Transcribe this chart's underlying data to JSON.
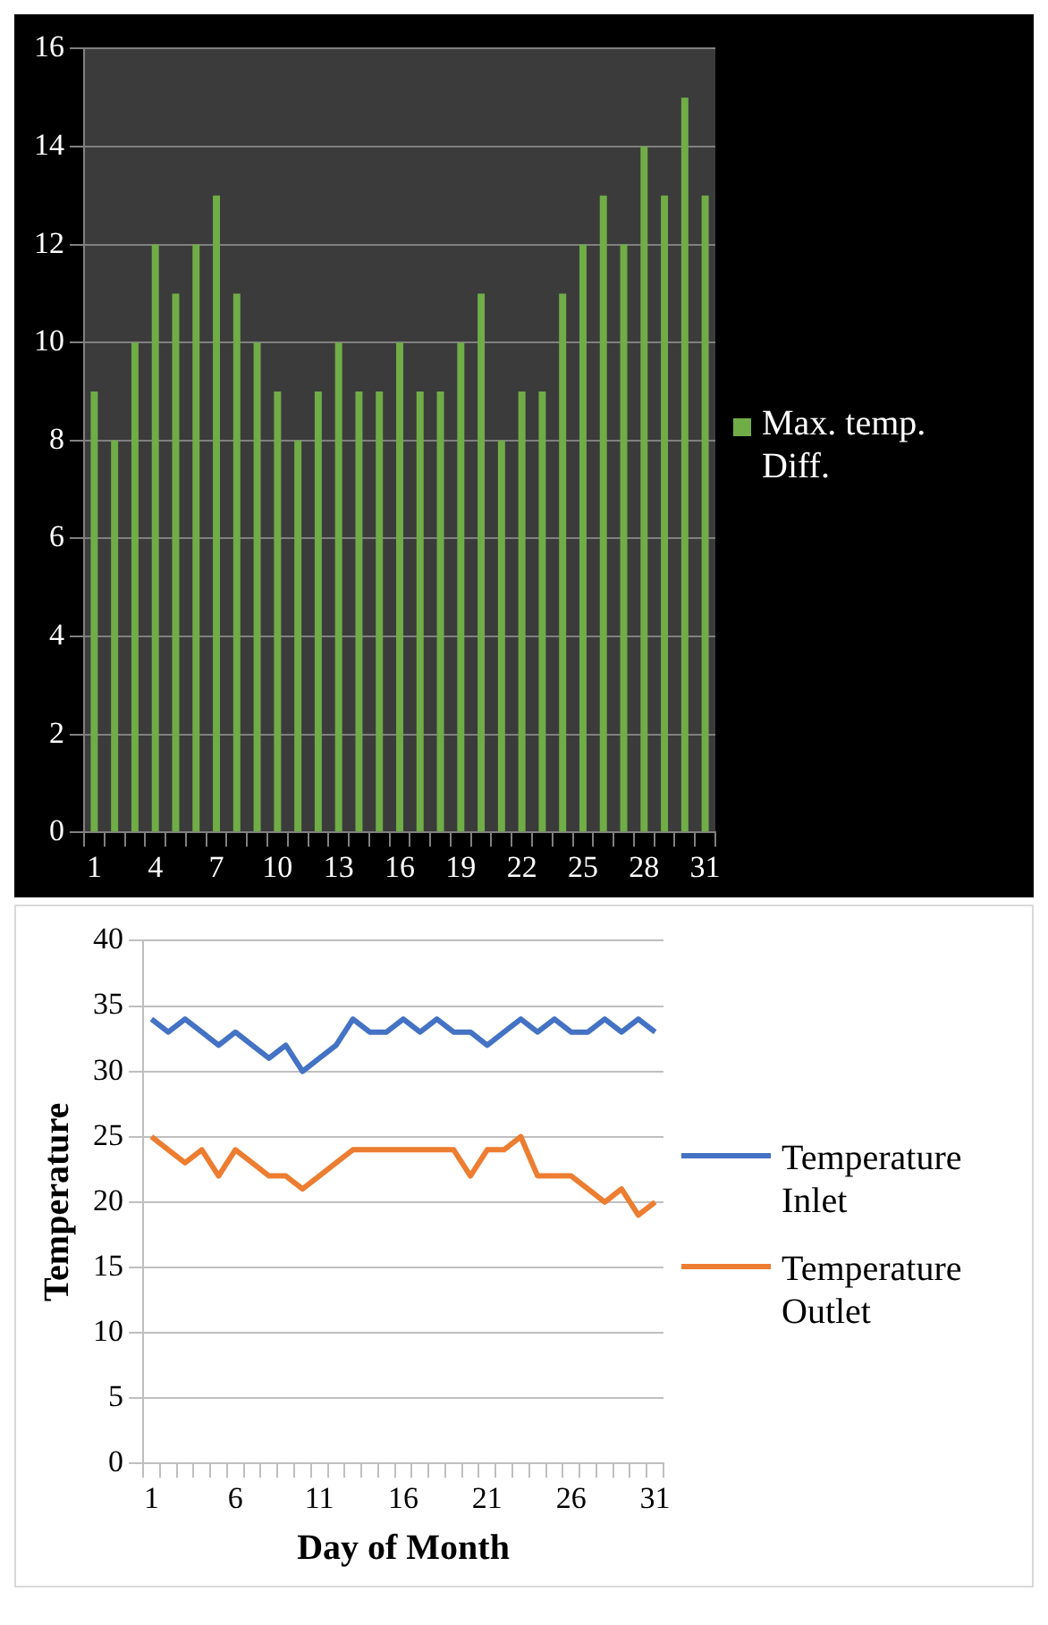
{
  "chart_data": [
    {
      "type": "bar",
      "categories": [
        "1",
        null,
        null,
        "4",
        null,
        null,
        "7",
        null,
        null,
        "10",
        null,
        null,
        "13",
        null,
        null,
        "16",
        null,
        null,
        "19",
        null,
        null,
        "22",
        null,
        null,
        "25",
        null,
        null,
        "28",
        null,
        null,
        "31"
      ],
      "series": [
        {
          "name": "Max. temp. Diff.",
          "color": "#70ad47",
          "values": [
            9,
            8,
            10,
            12,
            11,
            12,
            13,
            11,
            10,
            9,
            8,
            9,
            10,
            9,
            9,
            10,
            9,
            9,
            10,
            11,
            8,
            9,
            9,
            11,
            12,
            13,
            12,
            14,
            13,
            15,
            13
          ]
        }
      ],
      "ylim": [
        0,
        16
      ],
      "yticks": [
        0,
        2,
        4,
        6,
        8,
        10,
        12,
        14,
        16
      ],
      "grid": "y",
      "legend": "right"
    },
    {
      "type": "line",
      "xlabel": "Day of Month",
      "ylabel": "Temperature",
      "categories": [
        "1",
        null,
        null,
        null,
        null,
        "6",
        null,
        null,
        null,
        null,
        "11",
        null,
        null,
        null,
        null,
        "16",
        null,
        null,
        null,
        null,
        "21",
        null,
        null,
        null,
        null,
        "26",
        null,
        null,
        null,
        null,
        "31"
      ],
      "series": [
        {
          "name": "Temperature Inlet",
          "color": "#4472c4",
          "values": [
            34,
            33,
            34,
            33,
            32,
            33,
            32,
            31,
            32,
            30,
            31,
            32,
            34,
            33,
            33,
            34,
            33,
            34,
            33,
            33,
            32,
            33,
            34,
            33,
            34,
            33,
            33,
            34,
            33,
            34,
            33
          ]
        },
        {
          "name": "Temperature Outlet",
          "color": "#ed7d31",
          "values": [
            25,
            24,
            23,
            24,
            22,
            24,
            23,
            22,
            22,
            21,
            22,
            23,
            24,
            24,
            24,
            24,
            24,
            24,
            24,
            22,
            24,
            24,
            25,
            22,
            22,
            22,
            21,
            20,
            21,
            19,
            20
          ]
        }
      ],
      "ylim": [
        0,
        40
      ],
      "yticks": [
        0,
        5,
        10,
        15,
        20,
        25,
        30,
        35,
        40
      ],
      "grid": "y",
      "legend": "right",
      "marker": "none",
      "line_style": "solid"
    }
  ]
}
